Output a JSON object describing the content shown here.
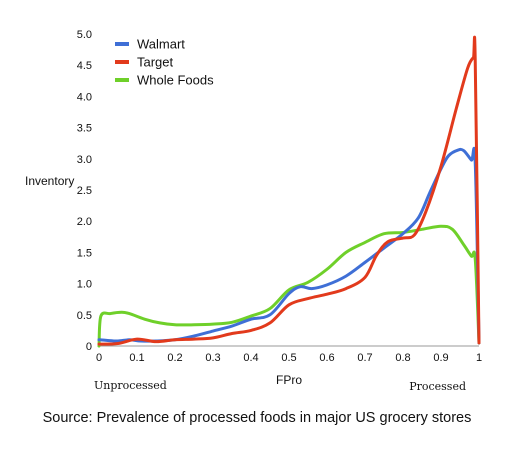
{
  "chart_data": {
    "type": "line",
    "xlabel": "FPro",
    "ylabel": "Inventory",
    "xlim": [
      0,
      1
    ],
    "ylim": [
      0,
      5
    ],
    "x_ticks": [
      "0",
      "0.1",
      "0.2",
      "0.3",
      "0.4",
      "0.5",
      "0.6",
      "0.7",
      "0.8",
      "0.9",
      "1"
    ],
    "y_ticks": [
      "0",
      "0.5",
      "1.0",
      "1.5",
      "2.0",
      "2.5",
      "3.0",
      "3.5",
      "4.0",
      "4.5",
      "5.0"
    ],
    "x_end_labels": {
      "left": "Unprocessed",
      "right": "Processed"
    },
    "legend_position": "top-left",
    "grid": false,
    "series": [
      {
        "name": "Walmart",
        "color": "#3f6fd6",
        "points": [
          [
            0,
            0.1
          ],
          [
            0.02,
            0.09
          ],
          [
            0.05,
            0.08
          ],
          [
            0.08,
            0.1
          ],
          [
            0.11,
            0.08
          ],
          [
            0.15,
            0.08
          ],
          [
            0.2,
            0.1
          ],
          [
            0.25,
            0.16
          ],
          [
            0.3,
            0.24
          ],
          [
            0.35,
            0.32
          ],
          [
            0.4,
            0.43
          ],
          [
            0.45,
            0.5
          ],
          [
            0.5,
            0.84
          ],
          [
            0.53,
            0.95
          ],
          [
            0.56,
            0.92
          ],
          [
            0.6,
            0.98
          ],
          [
            0.65,
            1.12
          ],
          [
            0.7,
            1.34
          ],
          [
            0.75,
            1.57
          ],
          [
            0.8,
            1.8
          ],
          [
            0.84,
            2.05
          ],
          [
            0.87,
            2.45
          ],
          [
            0.9,
            2.84
          ],
          [
            0.92,
            3.05
          ],
          [
            0.945,
            3.14
          ],
          [
            0.96,
            3.13
          ],
          [
            0.98,
            2.98
          ],
          [
            0.99,
            2.95
          ],
          [
            1.0,
            0.05
          ]
        ]
      },
      {
        "name": "Target",
        "color": "#e23a1c",
        "points": [
          [
            0,
            0.03
          ],
          [
            0.05,
            0.04
          ],
          [
            0.1,
            0.11
          ],
          [
            0.15,
            0.07
          ],
          [
            0.2,
            0.1
          ],
          [
            0.25,
            0.11
          ],
          [
            0.3,
            0.13
          ],
          [
            0.35,
            0.2
          ],
          [
            0.4,
            0.25
          ],
          [
            0.45,
            0.37
          ],
          [
            0.5,
            0.66
          ],
          [
            0.55,
            0.76
          ],
          [
            0.6,
            0.83
          ],
          [
            0.65,
            0.92
          ],
          [
            0.7,
            1.1
          ],
          [
            0.73,
            1.45
          ],
          [
            0.76,
            1.67
          ],
          [
            0.8,
            1.73
          ],
          [
            0.83,
            1.78
          ],
          [
            0.86,
            2.15
          ],
          [
            0.9,
            2.88
          ],
          [
            0.94,
            3.8
          ],
          [
            0.97,
            4.45
          ],
          [
            0.985,
            4.62
          ],
          [
            0.99,
            4.6
          ],
          [
            1.0,
            0.05
          ]
        ]
      },
      {
        "name": "Whole Foods",
        "color": "#6fd02a",
        "points": [
          [
            0,
            0.0
          ],
          [
            0.005,
            0.48
          ],
          [
            0.03,
            0.52
          ],
          [
            0.06,
            0.54
          ],
          [
            0.08,
            0.52
          ],
          [
            0.12,
            0.43
          ],
          [
            0.16,
            0.37
          ],
          [
            0.2,
            0.34
          ],
          [
            0.25,
            0.34
          ],
          [
            0.3,
            0.35
          ],
          [
            0.35,
            0.38
          ],
          [
            0.4,
            0.48
          ],
          [
            0.45,
            0.6
          ],
          [
            0.5,
            0.9
          ],
          [
            0.55,
            1.02
          ],
          [
            0.6,
            1.23
          ],
          [
            0.65,
            1.5
          ],
          [
            0.7,
            1.66
          ],
          [
            0.75,
            1.8
          ],
          [
            0.8,
            1.82
          ],
          [
            0.85,
            1.87
          ],
          [
            0.9,
            1.92
          ],
          [
            0.93,
            1.87
          ],
          [
            0.96,
            1.62
          ],
          [
            0.98,
            1.44
          ],
          [
            0.99,
            1.4
          ],
          [
            1.0,
            0.05
          ]
        ]
      }
    ]
  },
  "source_text": "Source: Prevalence of processed foods in major US grocery stores"
}
